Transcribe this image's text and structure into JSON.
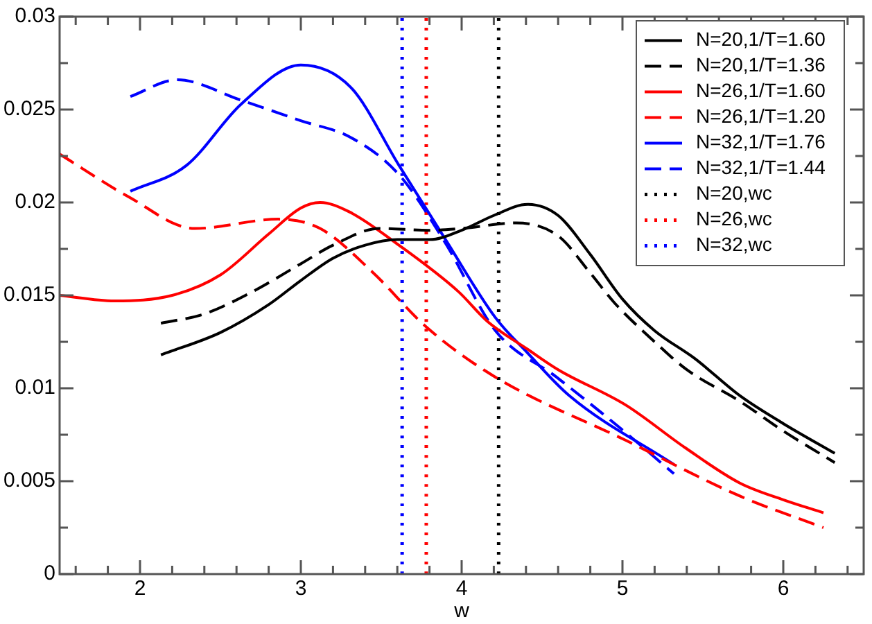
{
  "chart_data": {
    "type": "line",
    "xlabel": "w",
    "legend": "top right",
    "grid": false,
    "marker": "none",
    "xlim": [
      1.5,
      6.5
    ],
    "ylim": [
      0,
      0.03
    ],
    "xticks": [
      {
        "value": 1.6,
        "label": null
      },
      {
        "value": 1.8,
        "label": null
      },
      2,
      {
        "value": 2.2,
        "label": null
      },
      {
        "value": 2.4,
        "label": null
      },
      {
        "value": 2.6,
        "label": null
      },
      {
        "value": 2.8,
        "label": null
      },
      3,
      {
        "value": 3.2,
        "label": null
      },
      {
        "value": 3.4,
        "label": null
      },
      {
        "value": 3.6,
        "label": null
      },
      {
        "value": 3.8,
        "label": null
      },
      4,
      {
        "value": 4.2,
        "label": null
      },
      {
        "value": 4.4,
        "label": null
      },
      {
        "value": 4.6,
        "label": null
      },
      {
        "value": 4.8,
        "label": null
      },
      5,
      {
        "value": 5.2,
        "label": null
      },
      {
        "value": 5.4,
        "label": null
      },
      {
        "value": 5.6,
        "label": null
      },
      {
        "value": 5.8,
        "label": null
      },
      6,
      {
        "value": 6.2,
        "label": null
      },
      {
        "value": 6.4,
        "label": null
      }
    ],
    "yticks": [
      0,
      {
        "value": 0.0025,
        "label": null
      },
      0.005,
      {
        "value": 0.0075,
        "label": null
      },
      0.01,
      {
        "value": 0.0125,
        "label": null
      },
      0.015,
      {
        "value": 0.0175,
        "label": null
      },
      0.02,
      {
        "value": 0.0225,
        "label": null
      },
      0.025,
      {
        "value": 0.0275,
        "label": null
      },
      0.03
    ],
    "series": [
      {
        "name": "N=20,1/T=1.60",
        "color": "#000000",
        "line_style": "solid",
        "x": [
          2.13,
          2.5,
          2.8,
          3.0,
          3.2,
          3.4,
          3.6,
          3.8,
          4.0,
          4.2,
          4.41,
          4.6,
          4.8,
          5.0,
          5.2,
          5.45,
          5.73,
          6.0,
          6.32
        ],
        "values": [
          0.0118,
          0.013,
          0.0145,
          0.0158,
          0.017,
          0.0177,
          0.018,
          0.018,
          0.0185,
          0.0193,
          0.0199,
          0.0193,
          0.0172,
          0.0148,
          0.0131,
          0.0116,
          0.0096,
          0.0081,
          0.0065
        ]
      },
      {
        "name": "N=20,1/T=1.36",
        "color": "#000000",
        "line_style": "dashed",
        "x": [
          2.13,
          2.4,
          2.7,
          3.0,
          3.2,
          3.49,
          3.8,
          4.0,
          4.34,
          4.6,
          4.8,
          4.95,
          5.2,
          5.4,
          5.73,
          6.0,
          6.32
        ],
        "values": [
          0.0135,
          0.014,
          0.0152,
          0.0167,
          0.0177,
          0.0186,
          0.0185,
          0.0186,
          0.0189,
          0.0182,
          0.0162,
          0.0146,
          0.0125,
          0.011,
          0.0093,
          0.0077,
          0.006
        ]
      },
      {
        "name": "N=26,1/T=1.60",
        "color": "#ff0000",
        "line_style": "solid",
        "x": [
          1.5,
          1.84,
          2.2,
          2.5,
          2.8,
          3.0,
          3.12,
          3.3,
          3.61,
          3.98,
          4.16,
          4.41,
          4.6,
          5.02,
          5.39,
          5.73,
          6.0,
          6.25
        ],
        "values": [
          0.015,
          0.0147,
          0.015,
          0.0161,
          0.0183,
          0.0197,
          0.02,
          0.0195,
          0.0177,
          0.0152,
          0.0136,
          0.0121,
          0.011,
          0.0091,
          0.0068,
          0.0049,
          0.004,
          0.0033
        ]
      },
      {
        "name": "N=26,1/T=1.20",
        "color": "#ff0000",
        "line_style": "dashed",
        "x": [
          1.5,
          1.93,
          2.34,
          2.86,
          3.12,
          3.44,
          3.78,
          4.21,
          5.02,
          5.73,
          6.25
        ],
        "values": [
          0.0226,
          0.0203,
          0.0186,
          0.0191,
          0.0186,
          0.0163,
          0.0133,
          0.0106,
          0.0072,
          0.0042,
          0.0025
        ]
      },
      {
        "name": "N=32,1/T=1.76",
        "color": "#0000ff",
        "line_style": "solid",
        "x": [
          1.94,
          2.29,
          2.63,
          3.0,
          3.31,
          3.61,
          3.9,
          4.21,
          4.41,
          4.67,
          5.32
        ],
        "values": [
          0.0206,
          0.022,
          0.0253,
          0.0274,
          0.0262,
          0.022,
          0.018,
          0.0138,
          0.0119,
          0.0096,
          0.0059
        ]
      },
      {
        "name": "N=32,1/T=1.44",
        "color": "#0000ff",
        "line_style": "dashed",
        "x": [
          1.94,
          2.23,
          2.63,
          3.0,
          3.31,
          3.61,
          3.9,
          4.21,
          4.59,
          4.98,
          5.32
        ],
        "values": [
          0.0257,
          0.0266,
          0.0255,
          0.0244,
          0.0235,
          0.0215,
          0.0178,
          0.0131,
          0.0106,
          0.0079,
          0.0054
        ]
      },
      {
        "name": "N=20,wc",
        "color": "#000000",
        "line_style": "dotted",
        "x": [
          4.23,
          4.23
        ],
        "values": [
          0,
          0.03
        ]
      },
      {
        "name": "N=26,wc",
        "color": "#ff0000",
        "line_style": "dotted",
        "x": [
          3.78,
          3.78
        ],
        "values": [
          0,
          0.03
        ]
      },
      {
        "name": "N=32,wc",
        "color": "#0000ff",
        "line_style": "dotted",
        "x": [
          3.63,
          3.63
        ],
        "values": [
          0,
          0.03
        ]
      }
    ]
  }
}
